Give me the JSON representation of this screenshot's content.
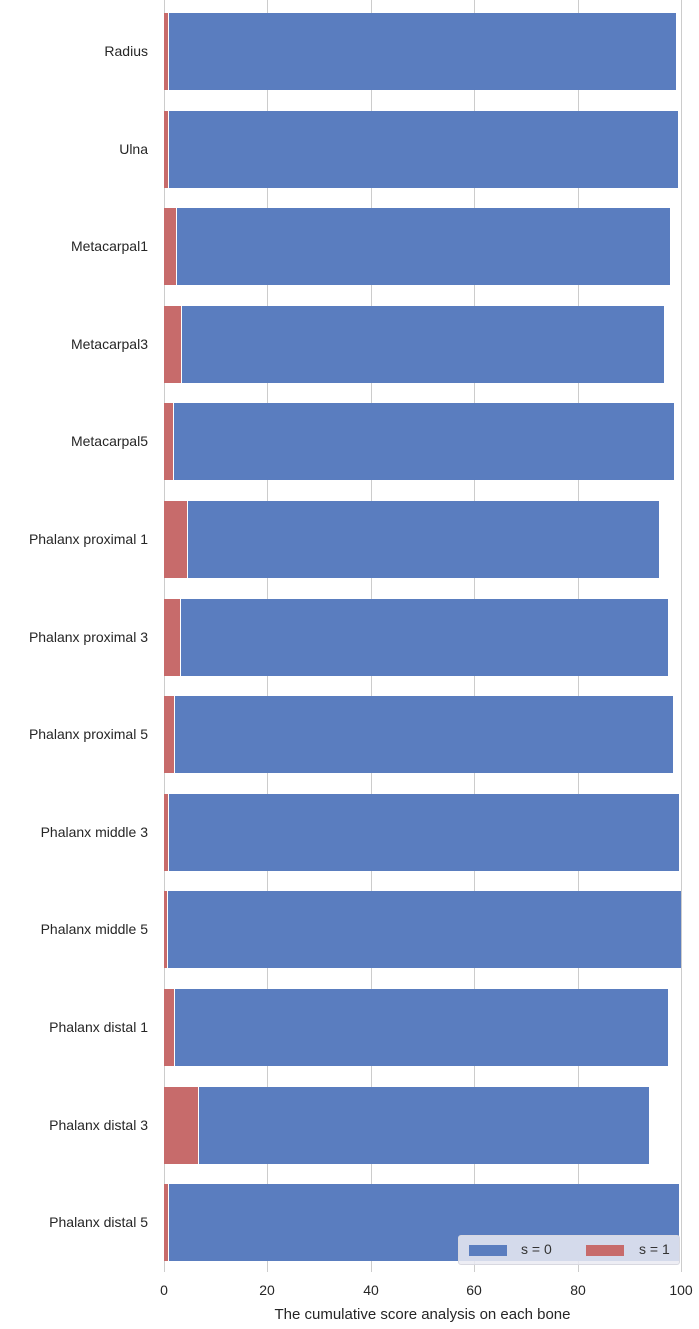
{
  "chart_data": {
    "type": "bar",
    "orientation": "horizontal",
    "stacked": true,
    "title": "",
    "xlabel": "The cumulative score analysis on each bone",
    "ylabel": "",
    "xlim": [
      0,
      100
    ],
    "xticks": [
      "0",
      "20",
      "40",
      "60",
      "80",
      "100"
    ],
    "grid": "vertical",
    "legend_position": "lower right",
    "categories": [
      "Radius",
      "Ulna",
      "Metacarpal1",
      "Metacarpal3",
      "Metacarpal5",
      "Phalanx proximal 1",
      "Phalanx proximal 3",
      "Phalanx proximal 5",
      "Phalanx middle 3",
      "Phalanx middle 5",
      "Phalanx distal 1",
      "Phalanx distal 3",
      "Phalanx distal 5"
    ],
    "series": [
      {
        "name": "s = 0",
        "color": "#5a7dbf",
        "values": [
          99.0,
          99.4,
          97.9,
          96.7,
          98.6,
          95.7,
          97.5,
          98.5,
          99.6,
          100.0,
          97.5,
          93.8,
          99.6
        ]
      },
      {
        "name": "s = 1",
        "color": "#c76b6b",
        "values": [
          0.8,
          0.8,
          2.4,
          3.3,
          1.8,
          4.5,
          3.0,
          2.0,
          0.8,
          0.5,
          2.0,
          6.6,
          0.8
        ]
      }
    ]
  },
  "legend": {
    "items": [
      {
        "label": "s = 0",
        "color": "#5a7dbf"
      },
      {
        "label": "s = 1",
        "color": "#c76b6b"
      }
    ]
  }
}
